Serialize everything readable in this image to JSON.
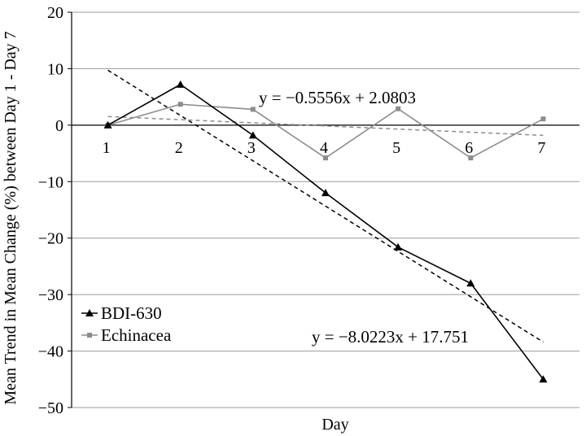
{
  "chart_data": {
    "type": "line",
    "title": "",
    "xlabel": "Day",
    "ylabel": "Mean Trend in Mean Change (%) between Day 1 - Day 7",
    "ylim": [
      -50,
      20
    ],
    "xlim": [
      0.5,
      7.5
    ],
    "grid": true,
    "legend": "bottom-left",
    "categories": [
      "1",
      "2",
      "3",
      "4",
      "5",
      "6",
      "7"
    ],
    "x": [
      1,
      2,
      3,
      4,
      5,
      6,
      7
    ],
    "y_ticks": [
      "20",
      "10",
      "0",
      "−10",
      "−20",
      "−30",
      "−40",
      "−50"
    ],
    "y_tick_values": [
      20,
      10,
      0,
      -10,
      -20,
      -30,
      -40,
      -50
    ],
    "series": [
      {
        "name": "BDI-630",
        "marker": "triangle",
        "color": "#000000",
        "values": [
          0,
          7.2,
          -1.8,
          -12,
          -21.6,
          -28,
          -45
        ],
        "trendline": {
          "slope": -8.0223,
          "intercept": 17.751,
          "label": "y = −8.0223x + 17.751",
          "color": "#000000"
        }
      },
      {
        "name": "Echinacea",
        "marker": "square",
        "color": "#8c8c8c",
        "values": [
          0,
          3.7,
          2.8,
          -5.8,
          2.9,
          -5.8,
          1.1
        ],
        "trendline": {
          "slope": -0.5556,
          "intercept": 2.0803,
          "label": "y = −0.5556x + 2.0803",
          "color": "#8c8c8c"
        }
      }
    ]
  }
}
